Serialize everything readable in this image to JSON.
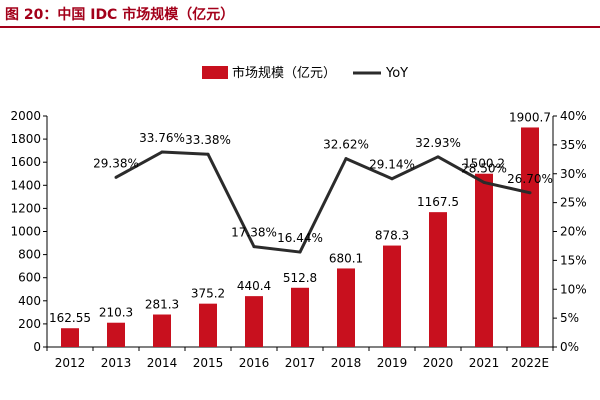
{
  "header": {
    "title": "图 20：中国 IDC 市场规模（亿元）"
  },
  "chart_data": {
    "type": "bar",
    "categories": [
      "2012",
      "2013",
      "2014",
      "2015",
      "2016",
      "2017",
      "2018",
      "2019",
      "2020",
      "2021",
      "2022E"
    ],
    "series": [
      {
        "name": "市场规模（亿元）",
        "type": "bar",
        "color": "#c8101e",
        "values": [
          162.55,
          210.3,
          281.3,
          375.2,
          440.4,
          512.8,
          680.1,
          878.3,
          1167.5,
          1500.2,
          1900.7
        ],
        "labels": [
          "162.55",
          "210.3",
          "281.3",
          "375.2",
          "440.4",
          "512.8",
          "680.1",
          "878.3",
          "1167.5",
          "1500.2",
          "1900.7"
        ]
      },
      {
        "name": "YoY",
        "type": "line",
        "color": "#2b2b2b",
        "axis": "right",
        "values": [
          null,
          29.38,
          33.76,
          33.38,
          17.38,
          16.44,
          32.62,
          29.14,
          32.93,
          28.5,
          26.7
        ],
        "labels": [
          "",
          "29.38%",
          "33.76%",
          "33.38%",
          "17.38%",
          "16.44%",
          "32.62%",
          "29.14%",
          "32.93%",
          "28.50%",
          "26.70%"
        ]
      }
    ],
    "y_left": {
      "min": 0,
      "max": 2000,
      "step": 200,
      "ticks": [
        "0",
        "200",
        "400",
        "600",
        "800",
        "1000",
        "1200",
        "1400",
        "1600",
        "1800",
        "2000"
      ]
    },
    "y_right": {
      "min": 0,
      "max": 40,
      "step": 5,
      "ticks": [
        "0%",
        "5%",
        "10%",
        "15%",
        "20%",
        "25%",
        "30%",
        "35%",
        "40%"
      ]
    },
    "legend": {
      "placement": "top-center"
    },
    "grid": false
  }
}
